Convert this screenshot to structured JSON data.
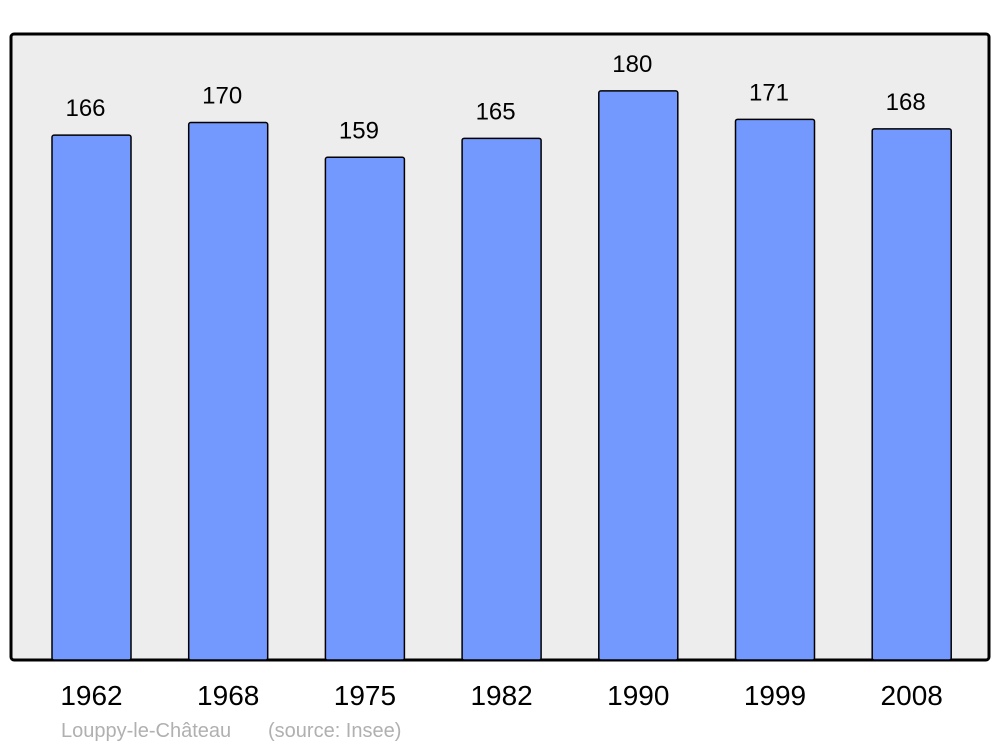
{
  "chart_data": {
    "type": "bar",
    "categories": [
      "1962",
      "1968",
      "1975",
      "1982",
      "1990",
      "1999",
      "2008"
    ],
    "values": [
      166,
      170,
      159,
      165,
      180,
      171,
      168
    ],
    "data_labels": [
      "166",
      "170",
      "159",
      "165",
      "180",
      "171",
      "168"
    ],
    "title": "",
    "xlabel": "",
    "ylabel": "",
    "ylim": [
      0,
      198
    ],
    "grid": false,
    "colors": {
      "bar": "#7399ff",
      "bar_stroke": "#000000",
      "plot_bg": "#ededed",
      "frame": "#000000"
    }
  },
  "footer": {
    "place": "Louppy-le-Château",
    "source": "(source: Insee)"
  }
}
